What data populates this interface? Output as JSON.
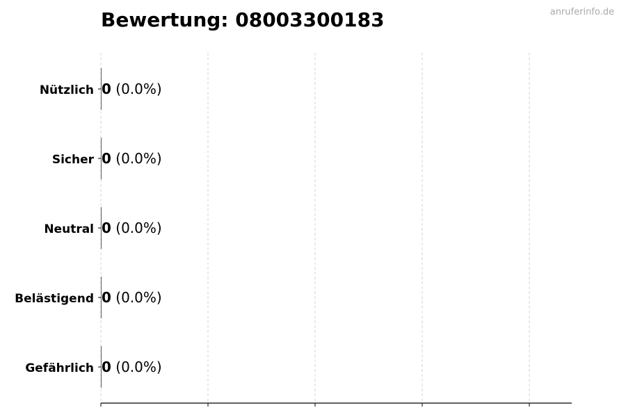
{
  "title": "Bewertung: 08003300183",
  "watermark": "anruferinfo.de",
  "chart_data": {
    "type": "bar",
    "orientation": "horizontal",
    "categories": [
      "Nützlich",
      "Sicher",
      "Neutral",
      "Belästigend",
      "Gefährlich"
    ],
    "values": [
      0,
      0,
      0,
      0,
      0
    ],
    "data_labels": [
      "0 (0.0%)",
      "0 (0.0%)",
      "0 (0.0%)",
      "0 (0.0%)",
      "0 (0.0%)"
    ],
    "title": "Bewertung: 08003300183",
    "xlabel": "",
    "ylabel": "",
    "x_tick_labels": [],
    "grid": "x, dashed",
    "bar_edge_color": "#333333"
  }
}
